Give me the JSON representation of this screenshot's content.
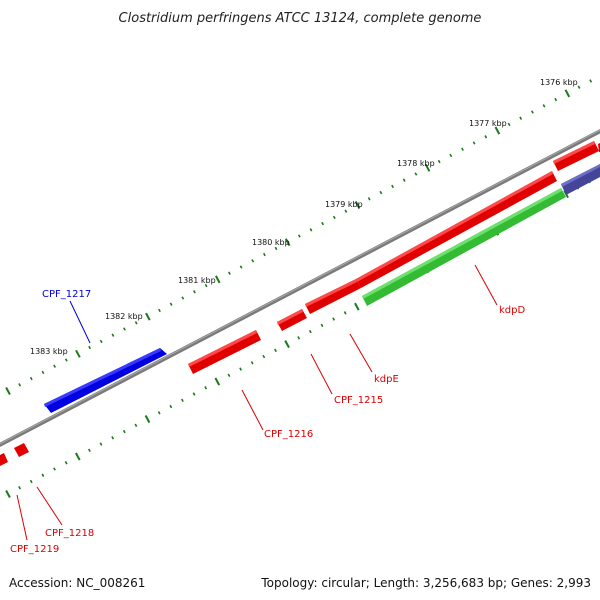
{
  "title": "Clostridium perfringens ATCC 13124, complete genome",
  "footer": {
    "accession": "Accession: NC_008261",
    "summary": "Topology: circular; Length: 3,256,683 bp; Genes: 2,993"
  },
  "colors": {
    "forward_gene": "#e00000",
    "reverse_gene": "#0000e0",
    "green_gene": "#33bb33",
    "purple_gene": "#444499",
    "backbone": "#777777",
    "tick": "#1a7a1a"
  },
  "scale_ticks": [
    "1376 kbp",
    "1377 kbp",
    "1378 kbp",
    "1379 kbp",
    "1380 kbp",
    "1381 kbp",
    "1382 kbp",
    "1383 kbp"
  ],
  "gene_labels": [
    {
      "name": "CPF_1217",
      "color": "#0000dd"
    },
    {
      "name": "kdpD",
      "color": "#dd0000"
    },
    {
      "name": "kdpE",
      "color": "#dd0000"
    },
    {
      "name": "CPF_1215",
      "color": "#dd0000"
    },
    {
      "name": "CPF_1216",
      "color": "#dd0000"
    },
    {
      "name": "CPF_1218",
      "color": "#dd0000"
    },
    {
      "name": "CPF_1219",
      "color": "#dd0000"
    }
  ]
}
